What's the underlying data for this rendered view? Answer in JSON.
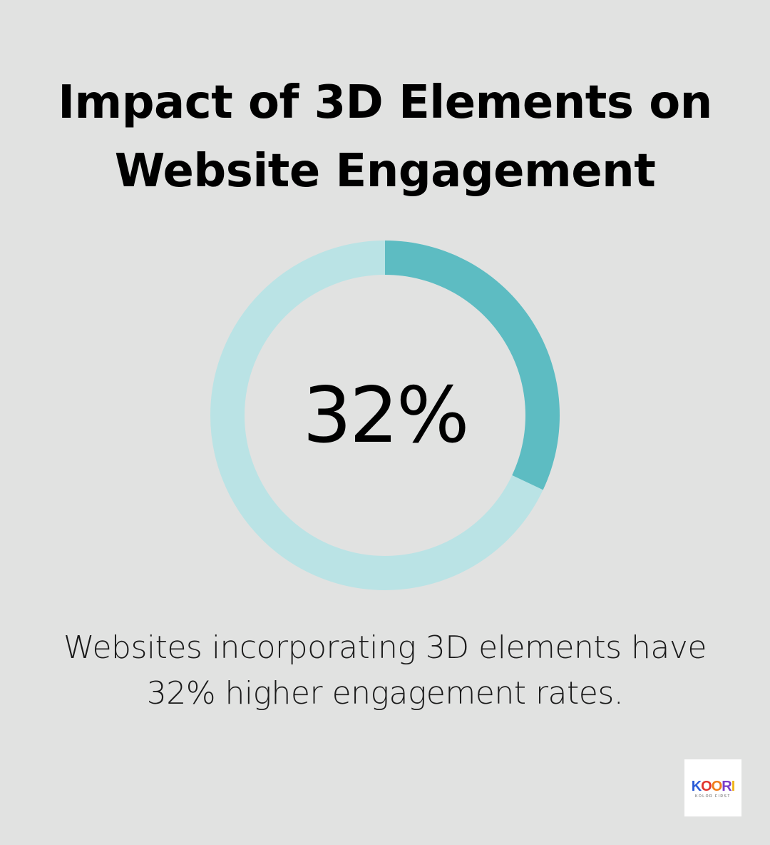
{
  "title_lines": [
    "Impact of 3D Elements on",
    "Website Engagement"
  ],
  "chart_data": {
    "type": "donut",
    "value": 32,
    "max": 100,
    "center_label": "32%",
    "colors": {
      "filled": "#5dbcc2",
      "track": "#bae3e5"
    }
  },
  "caption_lines": [
    "Websites incorporating 3D elements have",
    "32% higher engagement rates."
  ],
  "logo": {
    "word": "KOORI",
    "subtitle": "KOLOR FIRST"
  },
  "colors": {
    "background": "#e1e2e1"
  }
}
